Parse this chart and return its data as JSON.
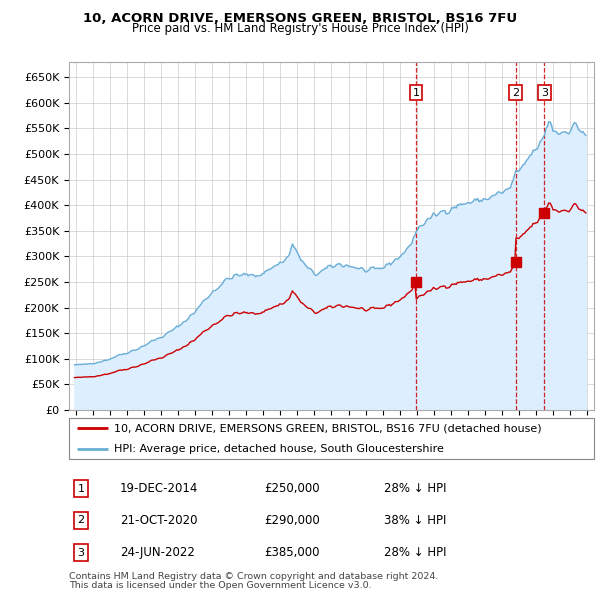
{
  "title1": "10, ACORN DRIVE, EMERSONS GREEN, BRISTOL, BS16 7FU",
  "title2": "Price paid vs. HM Land Registry's House Price Index (HPI)",
  "ylim": [
    0,
    680000
  ],
  "yticks": [
    0,
    50000,
    100000,
    150000,
    200000,
    250000,
    300000,
    350000,
    400000,
    450000,
    500000,
    550000,
    600000,
    650000
  ],
  "ytick_labels": [
    "£0",
    "£50K",
    "£100K",
    "£150K",
    "£200K",
    "£250K",
    "£300K",
    "£350K",
    "£400K",
    "£450K",
    "£500K",
    "£550K",
    "£600K",
    "£650K"
  ],
  "xlim_start": 1994.6,
  "xlim_end": 2025.4,
  "hpi_color": "#6aaed6",
  "hpi_fill_color": "#ddeeff",
  "property_color": "#cc0000",
  "sale1_x": 2014.97,
  "sale1_y": 250000,
  "sale2_x": 2020.81,
  "sale2_y": 290000,
  "sale3_x": 2022.48,
  "sale3_y": 385000,
  "legend_property": "10, ACORN DRIVE, EMERSONS GREEN, BRISTOL, BS16 7FU (detached house)",
  "legend_hpi": "HPI: Average price, detached house, South Gloucestershire",
  "table_rows": [
    [
      "1",
      "19-DEC-2014",
      "£250,000",
      "28% ↓ HPI"
    ],
    [
      "2",
      "21-OCT-2020",
      "£290,000",
      "38% ↓ HPI"
    ],
    [
      "3",
      "24-JUN-2022",
      "£385,000",
      "28% ↓ HPI"
    ]
  ],
  "footnote1": "Contains HM Land Registry data © Crown copyright and database right 2024.",
  "footnote2": "This data is licensed under the Open Government Licence v3.0.",
  "background_color": "#ffffff",
  "grid_color": "#cccccc"
}
